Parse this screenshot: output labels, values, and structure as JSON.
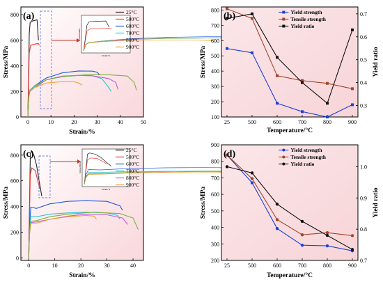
{
  "chart_data": [
    {
      "panel_label": "(a)",
      "type": "line",
      "xlabel": "Strain/%",
      "ylabel": "Stress/MPa",
      "xlim": [
        -3,
        50
      ],
      "ylim": [
        0,
        860
      ],
      "xticks": [
        0,
        10,
        20,
        30,
        40,
        50
      ],
      "yticks": [
        0,
        200,
        400,
        600,
        800
      ],
      "grid": false,
      "legend_position": "top-right",
      "background": "pink-gradient",
      "inset_xlabel": "Strain/%",
      "inset_ylabel": "Stress/MPa",
      "series": [
        {
          "name": "25°C",
          "color": "#222222",
          "points": [
            [
              0,
              0
            ],
            [
              0.3,
              300
            ],
            [
              0.6,
              650
            ],
            [
              1.0,
              740
            ],
            [
              2,
              750
            ],
            [
              3,
              755
            ],
            [
              4,
              760
            ],
            [
              4.6,
              600
            ]
          ]
        },
        {
          "name": "500°C",
          "color": "#e53935",
          "points": [
            [
              0,
              0
            ],
            [
              0.3,
              250
            ],
            [
              0.6,
              500
            ],
            [
              1.2,
              560
            ],
            [
              3,
              570
            ],
            [
              4.5,
              575
            ],
            [
              5,
              560
            ]
          ]
        },
        {
          "name": "600°C",
          "color": "#1e5bd8",
          "points": [
            [
              0,
              0
            ],
            [
              0.4,
              150
            ],
            [
              0.8,
              205
            ],
            [
              3,
              245
            ],
            [
              8,
              305
            ],
            [
              15,
              345
            ],
            [
              22,
              360
            ],
            [
              28,
              358
            ],
            [
              30,
              350
            ],
            [
              31,
              330
            ]
          ]
        },
        {
          "name": "700°C",
          "color": "#26c6da",
          "points": [
            [
              0,
              0
            ],
            [
              0.4,
              150
            ],
            [
              0.8,
              205
            ],
            [
              3,
              240
            ],
            [
              8,
              290
            ],
            [
              15,
              315
            ],
            [
              22,
              325
            ],
            [
              28,
              322
            ],
            [
              32,
              300
            ],
            [
              35,
              230
            ],
            [
              36,
              200
            ]
          ]
        },
        {
          "name": "800°C",
          "color": "#c25dd8",
          "points": [
            [
              0,
              0
            ],
            [
              0.4,
              160
            ],
            [
              0.9,
              200
            ],
            [
              3,
              230
            ],
            [
              8,
              290
            ],
            [
              15,
              320
            ],
            [
              22,
              325
            ],
            [
              28,
              322
            ],
            [
              35,
              300
            ],
            [
              38,
              270
            ],
            [
              39,
              215
            ]
          ]
        },
        {
          "name": "900°C",
          "color": "#f0a030",
          "points": [
            [
              0,
              0
            ],
            [
              0.3,
              150
            ],
            [
              0.8,
              200
            ],
            [
              3,
              230
            ],
            [
              8,
              265
            ],
            [
              14,
              275
            ],
            [
              20,
              275
            ],
            [
              22,
              265
            ],
            [
              23.5,
              250
            ]
          ]
        },
        {
          "name": "",
          "color": "#7cb342",
          "points": [
            [
              0,
              0
            ],
            [
              0.4,
              160
            ],
            [
              0.9,
              210
            ],
            [
              3,
              245
            ],
            [
              8,
              290
            ],
            [
              15,
              315
            ],
            [
              25,
              330
            ],
            [
              35,
              330
            ],
            [
              43,
              320
            ],
            [
              46,
              270
            ],
            [
              47,
              210
            ]
          ]
        }
      ]
    },
    {
      "panel_label": "(b)",
      "type": "line",
      "xlabel": "Temperature/°C",
      "ylabel": "Stress/MPa",
      "y2label": "Yield ratio",
      "categories": [
        "25",
        "500",
        "600",
        "700",
        "800",
        "900"
      ],
      "ylim": [
        100,
        820
      ],
      "yticks": [
        100,
        200,
        300,
        400,
        500,
        600,
        700,
        800
      ],
      "y2lim": [
        0.25,
        0.73
      ],
      "y2ticks": [
        0.3,
        0.4,
        0.5,
        0.6,
        0.7
      ],
      "legend_position": "top-center",
      "background": "pink-gradient",
      "series": [
        {
          "name": "Yield strength",
          "color": "#1f3fd6",
          "marker": "square",
          "axis": "left",
          "values": [
            548,
            520,
            190,
            135,
            100,
            180
          ]
        },
        {
          "name": "Tensile strength",
          "color": "#a0442c",
          "marker": "square",
          "axis": "left",
          "values": [
            808,
            745,
            370,
            338,
            320,
            285
          ]
        },
        {
          "name": "Yield ratio",
          "color": "#111111",
          "marker": "square",
          "axis": "right",
          "values": [
            0.68,
            0.7,
            0.51,
            0.4,
            0.31,
            0.63
          ]
        }
      ]
    },
    {
      "panel_label": "(c)",
      "type": "line",
      "xlabel": "Strain/%",
      "ylabel": "Stress/MPa",
      "xlim": [
        -3,
        44
      ],
      "ylim": [
        -20,
        880
      ],
      "xticks": [
        0,
        10,
        20,
        30,
        40
      ],
      "yticks": [
        0,
        200,
        400,
        600,
        800
      ],
      "grid": false,
      "legend_position": "top-right",
      "background": "pink-gradient",
      "inset_xlabel": "Strain/%",
      "inset_ylabel": "Stress/MPa",
      "series": [
        {
          "name": "25°C",
          "color": "#222222",
          "points": [
            [
              0,
              0
            ],
            [
              0.3,
              400
            ],
            [
              0.6,
              800
            ],
            [
              1.0,
              830
            ],
            [
              2,
              800
            ],
            [
              3,
              720
            ],
            [
              4,
              600
            ],
            [
              5,
              480
            ]
          ]
        },
        {
          "name": "500°C",
          "color": "#e53935",
          "points": [
            [
              0,
              0
            ],
            [
              0.3,
              350
            ],
            [
              0.6,
              650
            ],
            [
              1.2,
              700
            ],
            [
              2.5,
              680
            ],
            [
              3.5,
              600
            ],
            [
              4.2,
              540
            ]
          ]
        },
        {
          "name": "600°C",
          "color": "#1e5bd8",
          "points": [
            [
              0,
              0
            ],
            [
              0.3,
              250
            ],
            [
              0.8,
              395
            ],
            [
              3,
              385
            ],
            [
              8,
              420
            ],
            [
              15,
              440
            ],
            [
              22,
              445
            ],
            [
              30,
              440
            ],
            [
              35,
              405
            ],
            [
              36,
              370
            ]
          ]
        },
        {
          "name": "700°C",
          "color": "#26c6da",
          "points": [
            [
              0,
              0
            ],
            [
              0.3,
              200
            ],
            [
              0.8,
              320
            ],
            [
              3,
              320
            ],
            [
              8,
              340
            ],
            [
              15,
              350
            ],
            [
              22,
              355
            ],
            [
              30,
              350
            ],
            [
              34,
              330
            ],
            [
              35,
              300
            ]
          ]
        },
        {
          "name": "800°C",
          "color": "#c25dd8",
          "points": [
            [
              0,
              0
            ],
            [
              0.3,
              190
            ],
            [
              0.8,
              275
            ],
            [
              3,
              280
            ],
            [
              8,
              300
            ],
            [
              15,
              325
            ],
            [
              22,
              340
            ],
            [
              30,
              335
            ],
            [
              36,
              310
            ],
            [
              38,
              260
            ]
          ]
        },
        {
          "name": "900°C",
          "color": "#f0a030",
          "points": [
            [
              0,
              0
            ],
            [
              0.3,
              180
            ],
            [
              0.8,
              265
            ],
            [
              3,
              270
            ],
            [
              8,
              300
            ],
            [
              15,
              320
            ],
            [
              22,
              330
            ],
            [
              25,
              325
            ],
            [
              26,
              300
            ]
          ]
        },
        {
          "name": "",
          "color": "#7cb342",
          "points": [
            [
              0,
              0
            ],
            [
              0.3,
              190
            ],
            [
              0.8,
              285
            ],
            [
              3,
              290
            ],
            [
              8,
              320
            ],
            [
              15,
              340
            ],
            [
              25,
              355
            ],
            [
              35,
              345
            ],
            [
              40,
              310
            ],
            [
              42,
              220
            ]
          ]
        }
      ]
    },
    {
      "panel_label": "(d)",
      "type": "line",
      "xlabel": "Temperature/°C",
      "ylabel": "Stress/MPa",
      "y2label": "Yield ratio",
      "categories": [
        "25",
        "500",
        "600",
        "700",
        "800",
        "900"
      ],
      "ylim": [
        200,
        900
      ],
      "yticks": [
        200,
        300,
        400,
        500,
        600,
        700,
        800,
        900
      ],
      "y2lim": [
        0.7,
        1.07
      ],
      "y2ticks": [
        0.7,
        0.8,
        0.9,
        1.0
      ],
      "legend_position": "top-right",
      "background": "pink-gradient",
      "series": [
        {
          "name": "Yield strength",
          "color": "#1f3fd6",
          "marker": "circle",
          "axis": "left",
          "values": [
            838,
            670,
            393,
            292,
            288,
            258
          ]
        },
        {
          "name": "Tensile strength",
          "color": "#a0442c",
          "marker": "circle",
          "axis": "left",
          "values": [
            838,
            695,
            447,
            355,
            368,
            350
          ]
        },
        {
          "name": "Yield ratio",
          "color": "#111111",
          "marker": "circle",
          "axis": "right",
          "values": [
            1.0,
            0.98,
            0.88,
            0.825,
            0.78,
            0.735
          ]
        }
      ]
    }
  ]
}
